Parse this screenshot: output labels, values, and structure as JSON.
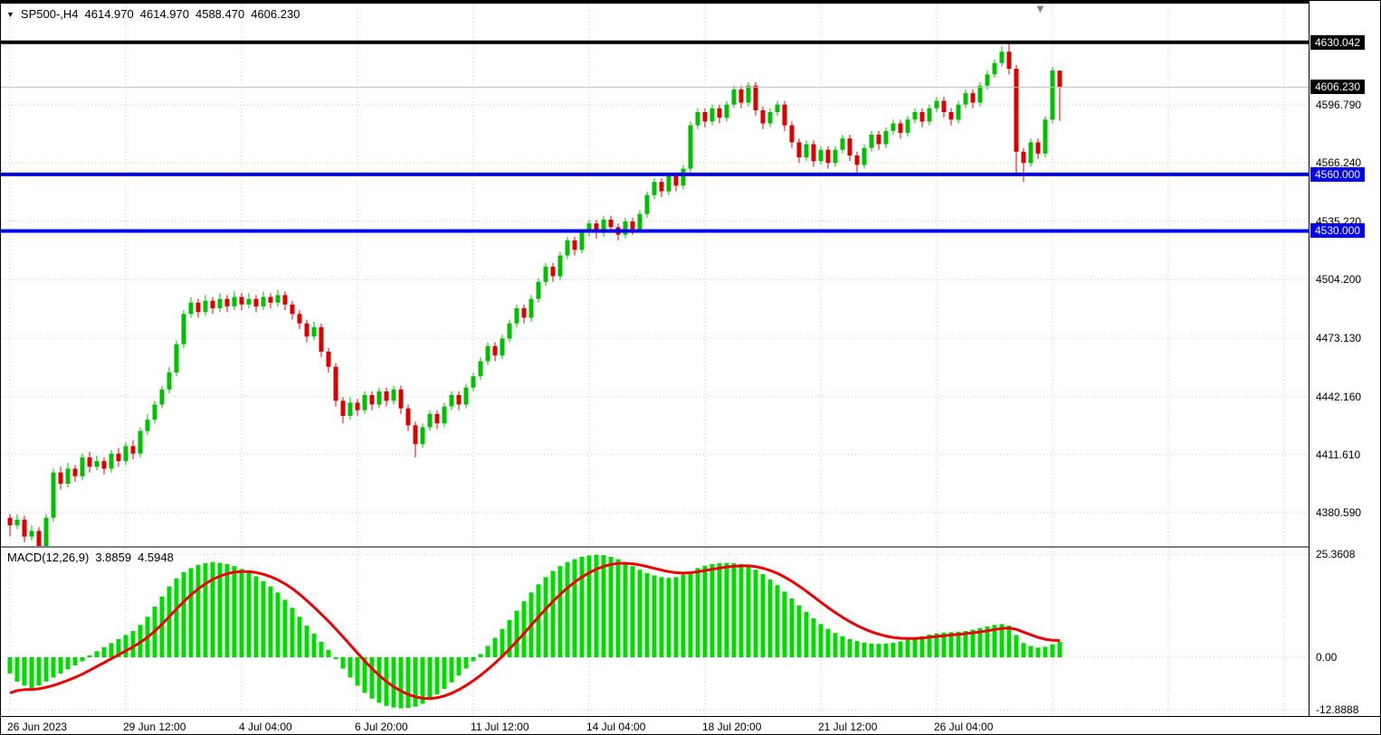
{
  "header": {
    "marker": "▼",
    "symbol": "SP500-,H4",
    "open": "4614.970",
    "high": "4614.970",
    "low": "4588.470",
    "close": "4606.230"
  },
  "indicator": {
    "label": "MACD(12,26,9)",
    "macd_value": "3.8859",
    "signal_value": "4.5948"
  },
  "chart_data": {
    "type": "candlestick",
    "symbol": "SP500",
    "timeframe": "H4",
    "ylim": [
      4363,
      4650.5
    ],
    "bar_spacing_px": 8,
    "grid_step_bars": 16,
    "price_ticks": [
      {
        "label": "4596.790",
        "price": 4596.79
      },
      {
        "label": "4566.240",
        "price": 4566.24
      },
      {
        "label": "4535.220",
        "price": 4535.22
      },
      {
        "label": "4504.200",
        "price": 4504.2
      },
      {
        "label": "4473.130",
        "price": 4473.13
      },
      {
        "label": "4442.160",
        "price": 4442.16
      },
      {
        "label": "4411.610",
        "price": 4411.61
      },
      {
        "label": "4380.590",
        "price": 4380.59
      }
    ],
    "price_tags": [
      {
        "label": "4630.042",
        "price": 4630.042,
        "bg": "#000000"
      },
      {
        "label": "4606.230",
        "price": 4606.23,
        "bg": "#000000"
      },
      {
        "label": "4560.000",
        "price": 4560.0,
        "bg": "#0000EE"
      },
      {
        "label": "4530.000",
        "price": 4530.0,
        "bg": "#0000EE"
      }
    ],
    "levels": [
      {
        "name": "current-price-line",
        "price": 4606.23,
        "color": "#BEBEBE",
        "width": 1
      },
      {
        "name": "resistance-line",
        "price": 4630.042,
        "color": "#000000",
        "width": 4
      },
      {
        "name": "support-line-upper",
        "price": 4560.0,
        "color": "#0000EE",
        "width": 4
      },
      {
        "name": "support-line-lower",
        "price": 4530.0,
        "color": "#0000EE",
        "width": 4
      }
    ],
    "x_labels": [
      {
        "text": "26 Jun 2023",
        "index": 0
      },
      {
        "text": "29 Jun 12:00",
        "index": 16
      },
      {
        "text": "4 Jul 04:00",
        "index": 32
      },
      {
        "text": "6 Jul 20:00",
        "index": 48
      },
      {
        "text": "11 Jul 12:00",
        "index": 64
      },
      {
        "text": "14 Jul 04:00",
        "index": 80
      },
      {
        "text": "18 Jul 20:00",
        "index": 96
      },
      {
        "text": "21 Jul 12:00",
        "index": 112
      },
      {
        "text": "26 Jul 04:00",
        "index": 128
      }
    ],
    "candles": [
      [
        4378,
        4380,
        4368,
        4374
      ],
      [
        4374,
        4380,
        4372,
        4377
      ],
      [
        4377,
        4379,
        4365,
        4368
      ],
      [
        4368,
        4374,
        4366,
        4371
      ],
      [
        4371,
        4373,
        4354,
        4360
      ],
      [
        4360,
        4380,
        4358,
        4378
      ],
      [
        4378,
        4404,
        4376,
        4402
      ],
      [
        4402,
        4405,
        4393,
        4396
      ],
      [
        4396,
        4407,
        4394,
        4404
      ],
      [
        4404,
        4406,
        4397,
        4400
      ],
      [
        4400,
        4412,
        4398,
        4410
      ],
      [
        4410,
        4413,
        4402,
        4405
      ],
      [
        4405,
        4411,
        4403,
        4408
      ],
      [
        4408,
        4410,
        4401,
        4404
      ],
      [
        4404,
        4414,
        4402,
        4412
      ],
      [
        4412,
        4415,
        4405,
        4408
      ],
      [
        4408,
        4418,
        4406,
        4416
      ],
      [
        4416,
        4419,
        4409,
        4412
      ],
      [
        4412,
        4426,
        4410,
        4424
      ],
      [
        4424,
        4433,
        4422,
        4430
      ],
      [
        4430,
        4440,
        4428,
        4438
      ],
      [
        4438,
        4448,
        4436,
        4446
      ],
      [
        4446,
        4458,
        4444,
        4455
      ],
      [
        4455,
        4472,
        4453,
        4470
      ],
      [
        4470,
        4488,
        4468,
        4486
      ],
      [
        4486,
        4495,
        4484,
        4492
      ],
      [
        4492,
        4494,
        4484,
        4487
      ],
      [
        4487,
        4496,
        4485,
        4493
      ],
      [
        4493,
        4495,
        4486,
        4489
      ],
      [
        4489,
        4497,
        4487,
        4494
      ],
      [
        4494,
        4496,
        4487,
        4490
      ],
      [
        4490,
        4498,
        4488,
        4495
      ],
      [
        4495,
        4497,
        4488,
        4491
      ],
      [
        4491,
        4497,
        4489,
        4494
      ],
      [
        4494,
        4496,
        4487,
        4490
      ],
      [
        4490,
        4498,
        4488,
        4495
      ],
      [
        4495,
        4497,
        4489,
        4492
      ],
      [
        4492,
        4499,
        4490,
        4496
      ],
      [
        4496,
        4498,
        4488,
        4491
      ],
      [
        4491,
        4493,
        4483,
        4486
      ],
      [
        4486,
        4488,
        4478,
        4481
      ],
      [
        4481,
        4483,
        4471,
        4474
      ],
      [
        4474,
        4482,
        4472,
        4479
      ],
      [
        4479,
        4481,
        4463,
        4466
      ],
      [
        4466,
        4468,
        4455,
        4458
      ],
      [
        4458,
        4460,
        4437,
        4440
      ],
      [
        4440,
        4442,
        4428,
        4432
      ],
      [
        4432,
        4442,
        4430,
        4439
      ],
      [
        4439,
        4441,
        4432,
        4435
      ],
      [
        4435,
        4445,
        4433,
        4443
      ],
      [
        4443,
        4445,
        4435,
        4438
      ],
      [
        4438,
        4447,
        4436,
        4445
      ],
      [
        4445,
        4447,
        4437,
        4440
      ],
      [
        4440,
        4448,
        4438,
        4446
      ],
      [
        4446,
        4448,
        4433,
        4436
      ],
      [
        4436,
        4438,
        4424,
        4427
      ],
      [
        4427,
        4429,
        4410,
        4417
      ],
      [
        4417,
        4428,
        4415,
        4426
      ],
      [
        4426,
        4435,
        4424,
        4433
      ],
      [
        4433,
        4435,
        4425,
        4428
      ],
      [
        4428,
        4439,
        4426,
        4437
      ],
      [
        4437,
        4445,
        4435,
        4443
      ],
      [
        4443,
        4445,
        4435,
        4438
      ],
      [
        4438,
        4449,
        4436,
        4447
      ],
      [
        4447,
        4455,
        4445,
        4453
      ],
      [
        4453,
        4463,
        4451,
        4461
      ],
      [
        4461,
        4471,
        4459,
        4469
      ],
      [
        4469,
        4471,
        4461,
        4464
      ],
      [
        4464,
        4475,
        4462,
        4473
      ],
      [
        4473,
        4483,
        4471,
        4481
      ],
      [
        4481,
        4491,
        4479,
        4489
      ],
      [
        4489,
        4491,
        4481,
        4484
      ],
      [
        4484,
        4496,
        4482,
        4494
      ],
      [
        4494,
        4505,
        4492,
        4503
      ],
      [
        4503,
        4513,
        4501,
        4511
      ],
      [
        4511,
        4513,
        4503,
        4506
      ],
      [
        4506,
        4519,
        4504,
        4517
      ],
      [
        4517,
        4527,
        4515,
        4525
      ],
      [
        4525,
        4527,
        4517,
        4520
      ],
      [
        4520,
        4531,
        4518,
        4529
      ],
      [
        4529,
        4536,
        4527,
        4534
      ],
      [
        4534,
        4536,
        4526,
        4529
      ],
      [
        4529,
        4538,
        4527,
        4536
      ],
      [
        4536,
        4538,
        4529,
        4532
      ],
      [
        4532,
        4534,
        4525,
        4528
      ],
      [
        4528,
        4537,
        4526,
        4535
      ],
      [
        4535,
        4537,
        4528,
        4531
      ],
      [
        4531,
        4541,
        4529,
        4539
      ],
      [
        4539,
        4551,
        4537,
        4549
      ],
      [
        4549,
        4558,
        4547,
        4556
      ],
      [
        4556,
        4558,
        4548,
        4551
      ],
      [
        4551,
        4561,
        4549,
        4559
      ],
      [
        4559,
        4561,
        4551,
        4554
      ],
      [
        4554,
        4565,
        4552,
        4563
      ],
      [
        4563,
        4588,
        4561,
        4586
      ],
      [
        4586,
        4595,
        4584,
        4593
      ],
      [
        4593,
        4595,
        4585,
        4588
      ],
      [
        4588,
        4597,
        4586,
        4595
      ],
      [
        4595,
        4597,
        4587,
        4590
      ],
      [
        4590,
        4599,
        4588,
        4597
      ],
      [
        4597,
        4607,
        4595,
        4605
      ],
      [
        4605,
        4607,
        4595,
        4598
      ],
      [
        4598,
        4609,
        4596,
        4607
      ],
      [
        4607,
        4609,
        4591,
        4594
      ],
      [
        4594,
        4596,
        4584,
        4587
      ],
      [
        4587,
        4595,
        4585,
        4593
      ],
      [
        4593,
        4599,
        4591,
        4597
      ],
      [
        4597,
        4599,
        4583,
        4586
      ],
      [
        4586,
        4588,
        4574,
        4577
      ],
      [
        4577,
        4579,
        4566,
        4569
      ],
      [
        4569,
        4578,
        4567,
        4576
      ],
      [
        4576,
        4578,
        4564,
        4567
      ],
      [
        4567,
        4575,
        4565,
        4573
      ],
      [
        4573,
        4575,
        4563,
        4566
      ],
      [
        4566,
        4575,
        4564,
        4573
      ],
      [
        4573,
        4581,
        4571,
        4579
      ],
      [
        4579,
        4581,
        4567,
        4570
      ],
      [
        4570,
        4572,
        4561,
        4565
      ],
      [
        4565,
        4576,
        4563,
        4574
      ],
      [
        4574,
        4583,
        4572,
        4581
      ],
      [
        4581,
        4583,
        4573,
        4576
      ],
      [
        4576,
        4585,
        4574,
        4583
      ],
      [
        4583,
        4589,
        4581,
        4587
      ],
      [
        4587,
        4589,
        4579,
        4582
      ],
      [
        4582,
        4591,
        4580,
        4589
      ],
      [
        4589,
        4595,
        4587,
        4593
      ],
      [
        4593,
        4595,
        4585,
        4588
      ],
      [
        4588,
        4597,
        4586,
        4595
      ],
      [
        4595,
        4601,
        4593,
        4599
      ],
      [
        4599,
        4601,
        4590,
        4593
      ],
      [
        4593,
        4595,
        4586,
        4589
      ],
      [
        4589,
        4599,
        4587,
        4597
      ],
      [
        4597,
        4605,
        4595,
        4603
      ],
      [
        4603,
        4605,
        4595,
        4598
      ],
      [
        4598,
        4609,
        4596,
        4607
      ],
      [
        4607,
        4615,
        4605,
        4613
      ],
      [
        4613,
        4621,
        4611,
        4619
      ],
      [
        4619,
        4628,
        4617,
        4625
      ],
      [
        4625,
        4630.5,
        4613,
        4616
      ],
      [
        4616,
        4618,
        4560,
        4572
      ],
      [
        4572,
        4574,
        4556,
        4566
      ],
      [
        4566,
        4579,
        4564,
        4577
      ],
      [
        4577,
        4579,
        4568,
        4571
      ],
      [
        4571,
        4591,
        4569,
        4589
      ],
      [
        4589,
        4617,
        4587,
        4615
      ],
      [
        4614.97,
        4614.97,
        4588.47,
        4606.23
      ]
    ],
    "macd": {
      "ylim": [
        -14.5,
        27
      ],
      "signal_seed": -10,
      "axis_ticks": [
        {
          "label": "25.3608",
          "value": 25.3608
        },
        {
          "label": "0.00",
          "value": 0
        },
        {
          "label": "-12.8888",
          "value": -12.8888
        }
      ],
      "hist": [
        -4,
        -6,
        -7,
        -8,
        -7,
        -6,
        -5,
        -4,
        -3,
        -2,
        -1,
        0.5,
        1.5,
        2.5,
        3.5,
        4.5,
        5.5,
        6.5,
        8,
        10,
        12.5,
        15,
        17.5,
        19.5,
        21,
        22,
        22.8,
        23.2,
        23.5,
        23.3,
        23,
        22.5,
        21.8,
        21,
        20,
        18.8,
        17.5,
        16,
        14.2,
        12.2,
        10,
        7.8,
        5.8,
        3.8,
        1.8,
        -0.5,
        -2.8,
        -5,
        -7,
        -8.8,
        -10.2,
        -11.2,
        -12,
        -12.4,
        -12.6,
        -12.5,
        -12.2,
        -11.5,
        -10.5,
        -9.2,
        -7.8,
        -6.2,
        -4.5,
        -2.8,
        -1,
        0.8,
        2.8,
        4.8,
        7,
        9.2,
        11.5,
        13.8,
        16,
        18,
        19.8,
        21.3,
        22.5,
        23.5,
        24.2,
        24.8,
        25.1,
        25.3,
        25.2,
        24.8,
        24.2,
        23.4,
        22.5,
        21.6,
        20.8,
        20.2,
        19.8,
        19.6,
        19.8,
        20.4,
        21.2,
        22,
        22.6,
        23,
        23.2,
        23.3,
        23.2,
        23,
        22.5,
        21.6,
        20.5,
        19.2,
        17.8,
        16.2,
        14.5,
        12.8,
        11.2,
        9.6,
        8.2,
        7,
        6,
        5.2,
        4.5,
        4,
        3.6,
        3.4,
        3.3,
        3.4,
        3.6,
        3.9,
        4.3,
        4.8,
        5.2,
        5.6,
        5.9,
        6.1,
        6.2,
        6.3,
        6.5,
        6.8,
        7.2,
        7.6,
        8,
        8.2,
        7.8,
        5.5,
        3.5,
        2.8,
        2.4,
        2.6,
        3.2,
        3.8859
      ]
    },
    "colors": {
      "bull": "#00C000",
      "bear": "#DC0000",
      "hist": "#00DC00",
      "signal": "#F00000",
      "grid": "#C9C9C9",
      "level_blue": "#0000EE",
      "tag_black": "#000000"
    }
  }
}
